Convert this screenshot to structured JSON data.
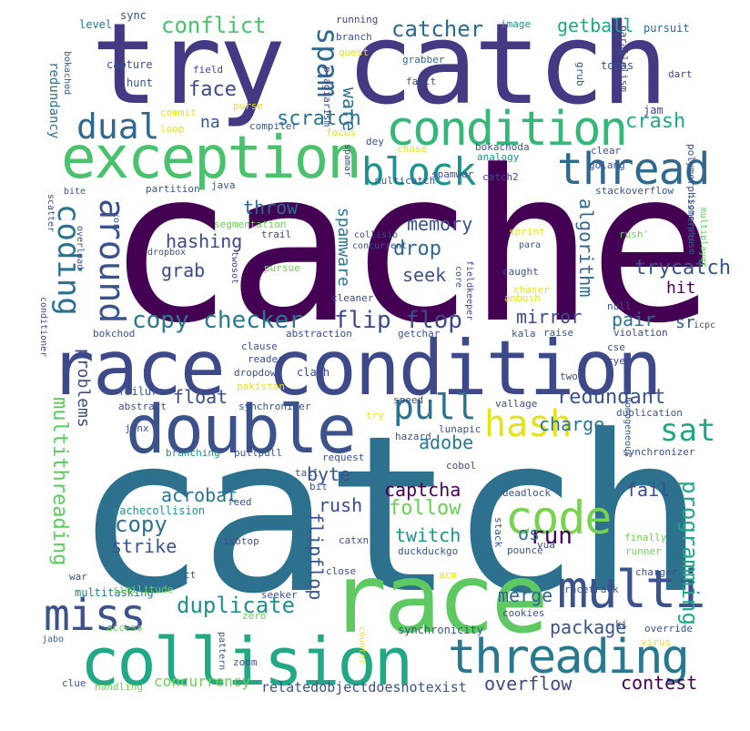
{
  "palette": {
    "dark": "#440154",
    "indigo": "#3b3f86",
    "blue": "#2d6f8e",
    "teal": "#21908c",
    "green": "#29b573",
    "lime": "#6dcd59",
    "yellow": "#e7e419"
  },
  "words": [
    {
      "text": "cache"
    },
    {
      "text": "catch"
    },
    {
      "text": "race condition"
    },
    {
      "text": "try catch"
    },
    {
      "text": "collision"
    },
    {
      "text": "double"
    },
    {
      "text": "race"
    },
    {
      "text": "threading"
    },
    {
      "text": "exception"
    },
    {
      "text": "condition"
    },
    {
      "text": "thread"
    },
    {
      "text": "multi"
    },
    {
      "text": "miss"
    },
    {
      "text": "block"
    },
    {
      "text": "code"
    },
    {
      "text": "hash"
    },
    {
      "text": "pull"
    },
    {
      "text": "dual"
    },
    {
      "text": "around"
    },
    {
      "text": "coding"
    },
    {
      "text": "spam"
    },
    {
      "text": "copy checker"
    },
    {
      "text": "flip flop"
    },
    {
      "text": "catcher"
    },
    {
      "text": "conflict"
    },
    {
      "text": "follow"
    },
    {
      "text": "sat"
    },
    {
      "text": "run"
    },
    {
      "text": "multithreading"
    },
    {
      "text": "programming"
    },
    {
      "text": "duplicate"
    },
    {
      "text": "copy"
    },
    {
      "text": "redundant"
    },
    {
      "text": "scratch"
    },
    {
      "text": "face"
    },
    {
      "text": "crash"
    },
    {
      "text": "trycatch"
    },
    {
      "text": "drop"
    },
    {
      "text": "memory"
    },
    {
      "text": "hashing"
    },
    {
      "text": "algorithm"
    },
    {
      "text": "adobe"
    },
    {
      "text": "captcha"
    },
    {
      "text": "getball"
    },
    {
      "text": "package"
    },
    {
      "text": "overflow"
    },
    {
      "text": "contest"
    },
    {
      "text": "twitch"
    },
    {
      "text": "mirror"
    },
    {
      "text": "pair"
    },
    {
      "text": "float"
    },
    {
      "text": "acrobat"
    },
    {
      "text": "strike"
    },
    {
      "text": "merge"
    },
    {
      "text": "rush"
    },
    {
      "text": "byte"
    },
    {
      "text": "fail"
    },
    {
      "text": "charge"
    },
    {
      "text": "seek"
    },
    {
      "text": "grab"
    },
    {
      "text": "throw"
    },
    {
      "text": "flipflop"
    },
    {
      "text": "ware"
    },
    {
      "text": "spamware"
    },
    {
      "text": "problems"
    },
    {
      "text": "os"
    },
    {
      "text": "concurrency"
    },
    {
      "text": "relatedobjectdoesnotexist"
    },
    {
      "text": "hit"
    },
    {
      "text": "sr"
    },
    {
      "text": "na"
    },
    {
      "text": "redundancy"
    },
    {
      "text": "multitasking"
    },
    {
      "text": "synchronicity"
    },
    {
      "text": "cachecollision"
    },
    {
      "text": "jabo"
    },
    {
      "text": "sync"
    },
    {
      "text": "level"
    },
    {
      "text": "capture"
    },
    {
      "text": "hunt"
    },
    {
      "text": "running"
    },
    {
      "text": "image"
    },
    {
      "text": "pursuit"
    },
    {
      "text": "branch"
    },
    {
      "text": "quest"
    },
    {
      "text": "grabber"
    },
    {
      "text": "fault"
    },
    {
      "text": "tocas"
    },
    {
      "text": "parallelism"
    },
    {
      "text": "jam"
    },
    {
      "text": "dart"
    },
    {
      "text": "bokachod"
    },
    {
      "text": "field"
    },
    {
      "text": "plagiarism"
    },
    {
      "text": "grub"
    },
    {
      "text": "commit"
    },
    {
      "text": "purse"
    },
    {
      "text": "compiler"
    },
    {
      "text": "focus"
    },
    {
      "text": "loop"
    },
    {
      "text": "dey"
    },
    {
      "text": "chase"
    },
    {
      "text": "bokachoda"
    },
    {
      "text": "clear"
    },
    {
      "text": "golang"
    },
    {
      "text": "spamar"
    },
    {
      "text": "analogy"
    },
    {
      "text": "spamwar"
    },
    {
      "text": "catch2"
    },
    {
      "text": "multicatch"
    },
    {
      "text": "stackoverflow"
    },
    {
      "text": "polymorphismerror"
    },
    {
      "text": "bite"
    },
    {
      "text": "partition"
    },
    {
      "text": "java"
    },
    {
      "text": "scatter"
    },
    {
      "text": "segmentation"
    },
    {
      "text": "trail"
    },
    {
      "text": "collisio"
    },
    {
      "text": "concurrent"
    },
    {
      "text": "sprint"
    },
    {
      "text": "multiplayer"
    },
    {
      "text": "isomorphism"
    },
    {
      "text": "rush'"
    },
    {
      "text": "para"
    },
    {
      "text": "xor"
    },
    {
      "text": "dropbox"
    },
    {
      "text": "overload"
    },
    {
      "text": "twosot"
    },
    {
      "text": "pursue"
    },
    {
      "text": "caught"
    },
    {
      "text": "fieldkeeper"
    },
    {
      "text": "core"
    },
    {
      "text": "chaser"
    },
    {
      "text": "ambush"
    },
    {
      "text": "null"
    },
    {
      "text": "cleaner"
    },
    {
      "text": "icpc"
    },
    {
      "text": "bokchod"
    },
    {
      "text": "abstraction"
    },
    {
      "text": "getchar"
    },
    {
      "text": "kala"
    },
    {
      "text": "raise"
    },
    {
      "text": "violation"
    },
    {
      "text": "cse"
    },
    {
      "text": "rye"
    },
    {
      "text": "clause"
    },
    {
      "text": "reader"
    },
    {
      "text": "dropdown"
    },
    {
      "text": "clash"
    },
    {
      "text": "conditioner"
    },
    {
      "text": "pakistan"
    },
    {
      "text": "two"
    },
    {
      "text": "failure"
    },
    {
      "text": "abstract"
    },
    {
      "text": "synchroniser"
    },
    {
      "text": "speed"
    },
    {
      "text": "vallage"
    },
    {
      "text": "try"
    },
    {
      "text": "duplication"
    },
    {
      "text": "homogeneous"
    },
    {
      "text": "lunapic"
    },
    {
      "text": "hazard"
    },
    {
      "text": "jinx"
    },
    {
      "text": "branching"
    },
    {
      "text": "pullpull"
    },
    {
      "text": "request"
    },
    {
      "text": "synchronizer"
    },
    {
      "text": "cobol"
    },
    {
      "text": "tail"
    },
    {
      "text": "bit"
    },
    {
      "text": "deadlock"
    },
    {
      "text": "feed"
    },
    {
      "text": "stack"
    },
    {
      "text": "finally"
    },
    {
      "text": "runner"
    },
    {
      "text": "vua"
    },
    {
      "text": "isotop"
    },
    {
      "text": "catxn"
    },
    {
      "text": "duckduckgo"
    },
    {
      "text": "pounce"
    },
    {
      "text": "charger"
    },
    {
      "text": "ct"
    },
    {
      "text": "war"
    },
    {
      "text": "close"
    },
    {
      "text": "acm"
    },
    {
      "text": "similitude"
    },
    {
      "text": "seeker"
    },
    {
      "text": "racetrack"
    },
    {
      "text": "zero"
    },
    {
      "text": "cookies"
    },
    {
      "text": "access"
    },
    {
      "text": "ki"
    },
    {
      "text": "override"
    },
    {
      "text": "virus"
    },
    {
      "text": "counter"
    },
    {
      "text": "pattern"
    },
    {
      "text": "zoom"
    },
    {
      "text": "clue"
    },
    {
      "text": "handling"
    }
  ]
}
